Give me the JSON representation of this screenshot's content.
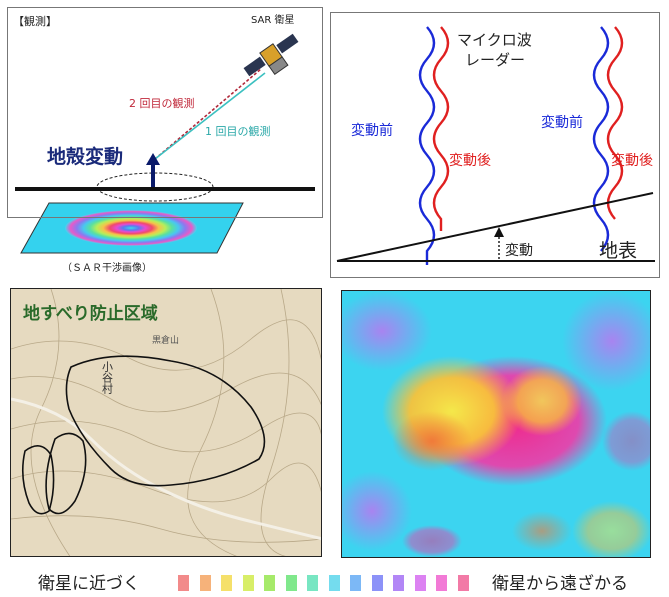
{
  "panel1": {
    "tag": "【観測】",
    "satellite_label": "SAR 衛星",
    "second_obs": "2 回目の観測",
    "first_obs": "1 回目の観測",
    "deformation": "地殻変動",
    "caption": "（ＳＡＲ干渉画像）"
  },
  "panel2": {
    "microwave_line1": "マイクロ波",
    "microwave_line2": "レーダー",
    "before_left": "変動前",
    "after_left": "変動後",
    "before_right": "変動前",
    "after_right": "変動後",
    "movement": "変動",
    "ground": "地表",
    "colors": {
      "before": "#1a2ad8",
      "after": "#e02020"
    }
  },
  "panel3": {
    "title": "地すべり防止区域",
    "village": "小谷村",
    "mountain": "黒倉山"
  },
  "scale": {
    "left_label": "衛星に近づく",
    "right_label": "衛星から遠ざかる",
    "swatches": [
      "#f28a8a",
      "#f6b27a",
      "#f5e06a",
      "#d8ee68",
      "#a6ea6a",
      "#80e88c",
      "#78e6c2",
      "#74dcee",
      "#7cb8f6",
      "#8c92f8",
      "#b286f6",
      "#dc82f2",
      "#f27ad6",
      "#f27aa6"
    ]
  }
}
